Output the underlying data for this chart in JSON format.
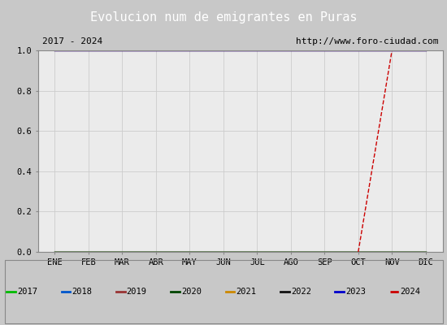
{
  "title": "Evolucion num de emigrantes en Puras",
  "title_bg_color": "#4f86c6",
  "title_text_color": "white",
  "subtitle_left": "2017 - 2024",
  "subtitle_right": "http://www.foro-ciudad.com",
  "x_labels": [
    "ENE",
    "FEB",
    "MAR",
    "ABR",
    "MAY",
    "JUN",
    "JUL",
    "AGO",
    "SEP",
    "OCT",
    "NOV",
    "DIC"
  ],
  "ylim": [
    0.0,
    1.0
  ],
  "yticks": [
    0.0,
    0.2,
    0.4,
    0.6,
    0.8,
    1.0
  ],
  "series": [
    {
      "label": "2017",
      "color": "#00bb00",
      "linestyle": "-",
      "x": [
        0,
        1,
        2,
        3,
        4,
        5,
        6,
        7,
        8,
        9,
        10,
        11
      ],
      "y": [
        0,
        0,
        0,
        0,
        0,
        0,
        0,
        0,
        0,
        0,
        0,
        0
      ]
    },
    {
      "label": "2018",
      "color": "#0055cc",
      "linestyle": "-",
      "x": [
        0,
        1,
        2,
        3,
        4,
        5,
        6,
        7,
        8,
        9,
        10,
        11
      ],
      "y": [
        0,
        0,
        0,
        0,
        0,
        0,
        0,
        0,
        0,
        0,
        0,
        0
      ]
    },
    {
      "label": "2019",
      "color": "#993333",
      "linestyle": "-",
      "x": [
        0,
        1,
        2,
        3,
        4,
        5,
        6,
        7,
        8,
        9,
        10,
        11
      ],
      "y": [
        1,
        1,
        1,
        1,
        1,
        1,
        1,
        1,
        1,
        1,
        1,
        1
      ]
    },
    {
      "label": "2020",
      "color": "#004400",
      "linestyle": "-",
      "x": [
        0,
        1,
        2,
        3,
        4,
        5,
        6,
        7,
        8,
        9,
        10,
        11
      ],
      "y": [
        0,
        0,
        0,
        0,
        0,
        0,
        0,
        0,
        0,
        0,
        0,
        0
      ]
    },
    {
      "label": "2021",
      "color": "#cc8800",
      "linestyle": "-",
      "x": [
        0,
        1,
        2,
        3,
        4,
        5,
        6,
        7,
        8,
        9,
        10,
        11
      ],
      "y": [
        0,
        0,
        0,
        0,
        0,
        0,
        0,
        0,
        0,
        0,
        0,
        0
      ]
    },
    {
      "label": "2022",
      "color": "#111111",
      "linestyle": "-",
      "x": [
        0,
        1,
        2,
        3,
        4,
        5,
        6,
        7,
        8,
        9,
        10,
        11
      ],
      "y": [
        0,
        0,
        0,
        0,
        0,
        0,
        0,
        0,
        0,
        0,
        0,
        0
      ]
    },
    {
      "label": "2023",
      "color": "#0000cc",
      "linestyle": "-",
      "x": [
        0,
        1,
        2,
        3,
        4,
        5,
        6,
        7,
        8,
        9,
        10,
        11
      ],
      "y": [
        1,
        1,
        1,
        1,
        1,
        1,
        1,
        1,
        1,
        1,
        1,
        1
      ]
    },
    {
      "label": "2024",
      "color": "#cc0000",
      "linestyle": "--",
      "x": [
        9,
        10
      ],
      "y": [
        0,
        1
      ]
    }
  ],
  "grid_color": "#cccccc",
  "plot_bg_color": "#ebebeb",
  "fig_bg_color": "#c8c8c8",
  "legend_bg_color": "#ffffff",
  "legend_border_color": "#888888",
  "subtitle_bg_color": "#ffffff",
  "subtitle_border_color": "#888888"
}
